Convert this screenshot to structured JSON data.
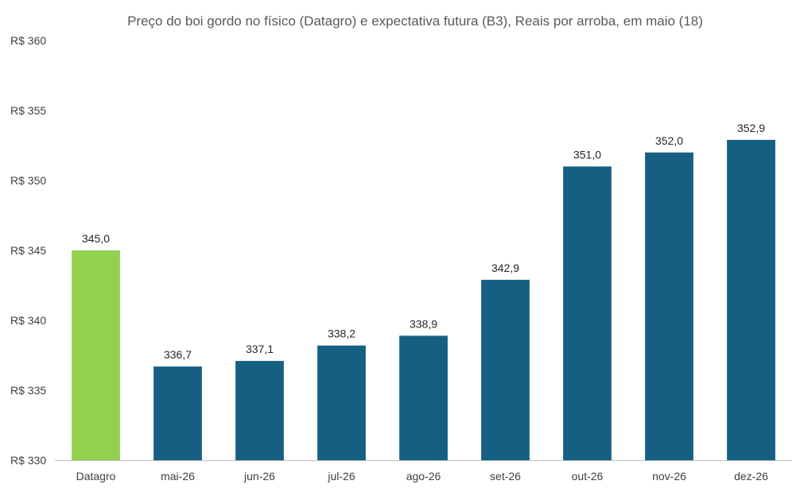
{
  "chart_data": {
    "type": "bar",
    "title": "Preço do boi gordo no físico (Datagro)  e expectativa futura (B3), Reais por arroba, em maio (18)",
    "categories": [
      "Datagro",
      "mai-26",
      "jun-26",
      "jul-26",
      "ago-26",
      "set-26",
      "out-26",
      "nov-26",
      "dez-26"
    ],
    "values": [
      345.0,
      336.7,
      337.1,
      338.2,
      338.9,
      342.9,
      351.0,
      352.0,
      352.9
    ],
    "value_labels": [
      "345,0",
      "336,7",
      "337,1",
      "338,2",
      "338,9",
      "342,9",
      "351,0",
      "352,0",
      "352,9"
    ],
    "bar_colors": [
      "#92d050",
      "#156082",
      "#156082",
      "#156082",
      "#156082",
      "#156082",
      "#156082",
      "#156082",
      "#156082"
    ],
    "ylim": [
      330,
      360
    ],
    "yticks": [
      330,
      335,
      340,
      345,
      350,
      355,
      360
    ],
    "ytick_labels": [
      "R$ 330",
      "R$ 335",
      "R$ 340",
      "R$ 345",
      "R$ 350",
      "R$ 355",
      "R$ 360"
    ],
    "grid": false,
    "legend": "none",
    "axis_color": "#bfbfbf"
  }
}
